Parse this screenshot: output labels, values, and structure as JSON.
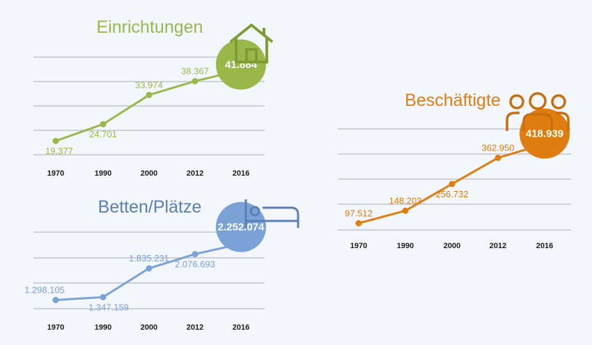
{
  "chart_data": [
    {
      "type": "line",
      "title": "Einrichtungen",
      "icon": "house-icon",
      "color": "#9ab84a",
      "categories": [
        "1970",
        "1990",
        "2000",
        "2012",
        "2016"
      ],
      "values": [
        19377,
        24701,
        33974,
        38367,
        41884
      ],
      "value_labels": [
        "19.377",
        "24.701",
        "33.974",
        "38.367",
        "41.884"
      ],
      "ylim": [
        15000,
        46000
      ]
    },
    {
      "type": "line",
      "title": "Betten/Plätze",
      "icon": "bed-icon",
      "color": "#7aa2d6",
      "categories": [
        "1970",
        "1990",
        "2000",
        "2012",
        "2016"
      ],
      "values": [
        1298105,
        1347159,
        1835231,
        2076693,
        2252074
      ],
      "value_labels": [
        "1.298.105",
        "1.347.159",
        "1.835.231",
        "2.076.693",
        "2.252.074"
      ],
      "ylim": [
        1150000,
        2450000
      ]
    },
    {
      "type": "line",
      "title": "Beschäftigte",
      "icon": "people-group-icon",
      "color": "#e07d10",
      "categories": [
        "1970",
        "1990",
        "2000",
        "2012",
        "2016"
      ],
      "values": [
        97512,
        148203,
        256732,
        362950,
        418939
      ],
      "value_labels": [
        "97.512",
        "148.203",
        "256.732",
        "362.950",
        "418.939"
      ],
      "ylim": [
        70000,
        480000
      ]
    }
  ]
}
